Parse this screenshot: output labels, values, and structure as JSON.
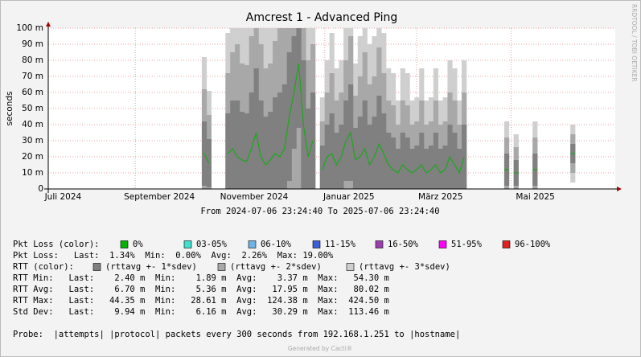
{
  "chart_data": {
    "type": "smokeping",
    "title": "Amcrest 1 - Advanced Ping",
    "y_label": "seconds",
    "subtitle": "From 2024-07-06 23:24:40 To 2025-07-06 23:24:40",
    "watermark": "RRDTOOL / TOBI OETIKER",
    "xlim": [
      "2024-07-06 23:24:40",
      "2025-07-06 23:24:40"
    ],
    "xticks": [
      {
        "value": "2024-07",
        "label": "Juli 2024"
      },
      {
        "value": "2024-09",
        "label": "September 2024"
      },
      {
        "value": "2024-11",
        "label": "November 2024"
      },
      {
        "value": "2025-01",
        "label": "Januar 2025"
      },
      {
        "value": "2025-03",
        "label": "März 2025"
      },
      {
        "value": "2025-05",
        "label": "Mai 2025"
      }
    ],
    "ylim": [
      0,
      0.1
    ],
    "yticks": [
      0,
      {
        "value": 0.01,
        "label": "10 m"
      },
      {
        "value": 0.02,
        "label": "20 m"
      },
      {
        "value": 0.03,
        "label": "30 m"
      },
      {
        "value": 0.04,
        "label": "40 m"
      },
      {
        "value": 0.05,
        "label": "50 m"
      },
      {
        "value": 0.06,
        "label": "60 m"
      },
      {
        "value": 0.07,
        "label": "70 m"
      },
      {
        "value": 0.08,
        "label": "80 m"
      },
      {
        "value": 0.09,
        "label": "90 m"
      },
      {
        "value": 0.1,
        "label": "100 m"
      }
    ],
    "grid": true,
    "median": {
      "color": "#1aa81a",
      "values": [
        null,
        null,
        null,
        null,
        null,
        null,
        null,
        null,
        null,
        null,
        null,
        null,
        null,
        null,
        null,
        null,
        null,
        null,
        null,
        null,
        null,
        null,
        null,
        null,
        null,
        null,
        null,
        null,
        null,
        null,
        null,
        null,
        null,
        0.022,
        0.016,
        null,
        null,
        null,
        0.022,
        0.025,
        0.02,
        0.018,
        0.017,
        0.025,
        0.035,
        0.02,
        0.015,
        0.018,
        0.022,
        0.02,
        0.025,
        0.045,
        0.06,
        0.078,
        0.04,
        0.02,
        0.03,
        null,
        0.012,
        0.02,
        0.022,
        0.015,
        0.02,
        0.03,
        0.035,
        0.018,
        0.02,
        0.025,
        0.015,
        0.02,
        0.028,
        0.022,
        0.015,
        0.012,
        0.01,
        0.015,
        0.012,
        0.01,
        0.012,
        0.015,
        0.01,
        0.012,
        0.015,
        0.01,
        0.012,
        0.02,
        0.015,
        0.01,
        0.02,
        null,
        null,
        null,
        null,
        null,
        null,
        null,
        null,
        0.012,
        null,
        0.01,
        null,
        null,
        null,
        0.012,
        null,
        null,
        null,
        null,
        null,
        null,
        null,
        0.022,
        null,
        null,
        null,
        null,
        null,
        null,
        null,
        null,
        null
      ]
    },
    "series": [
      {
        "name": "(rttavg +- 1*sdev)",
        "k": 1,
        "color": "#808080",
        "values": [
          null,
          null,
          null,
          null,
          null,
          null,
          null,
          null,
          null,
          null,
          null,
          null,
          null,
          null,
          null,
          null,
          null,
          null,
          null,
          null,
          null,
          null,
          null,
          null,
          null,
          null,
          null,
          null,
          null,
          null,
          null,
          null,
          null,
          0.02,
          0.015,
          null,
          null,
          null,
          0.025,
          0.03,
          0.035,
          0.03,
          0.03,
          0.035,
          0.04,
          0.035,
          0.03,
          0.03,
          0.035,
          0.04,
          0.04,
          0.04,
          0.035,
          0.04,
          0.04,
          0.03,
          0.03,
          null,
          0.015,
          0.02,
          0.025,
          0.02,
          0.02,
          0.025,
          0.03,
          0.02,
          0.025,
          0.03,
          0.025,
          0.025,
          0.03,
          0.025,
          0.02,
          0.02,
          0.015,
          0.02,
          0.02,
          0.015,
          0.015,
          0.02,
          0.015,
          0.015,
          0.02,
          0.015,
          0.015,
          0.02,
          0.02,
          0.015,
          0.02,
          null,
          null,
          null,
          null,
          null,
          null,
          null,
          null,
          0.01,
          null,
          0.008,
          null,
          null,
          null,
          0.01,
          null,
          null,
          null,
          null,
          null,
          null,
          null,
          0.006,
          null,
          null,
          null,
          null,
          null,
          null,
          null,
          null,
          null
        ]
      },
      {
        "name": "(rttavg +- 2*sdev)",
        "k": 2,
        "color": "#a8a8a8"
      },
      {
        "name": "(rttavg +- 3*sdev)",
        "k": 3,
        "color": "#cfcfcf"
      }
    ],
    "loss_legend": {
      "label": "Pkt Loss (color):",
      "items": [
        {
          "name": "0%",
          "color": "#00b400"
        },
        {
          "name": "03-05%",
          "color": "#40e0d0"
        },
        {
          "name": "06-10%",
          "color": "#6cb4e4"
        },
        {
          "name": "11-15%",
          "color": "#3a5fd8"
        },
        {
          "name": "16-50%",
          "color": "#9b3fb0"
        },
        {
          "name": "51-95%",
          "color": "#ff00ff"
        },
        {
          "name": "96-100%",
          "color": "#e02020"
        }
      ]
    },
    "rtt_legend_label": "RTT (color):",
    "stats": [
      "Pkt Loss:   Last:  1.34%  Min:  0.00%  Avg:  2.26%  Max: 19.00%",
      "RTT Min:   Last:    2.40 m  Min:    1.89 m  Avg:    3.37 m  Max:   54.30 m",
      "RTT Avg:   Last:    6.70 m  Min:    5.36 m  Avg:   17.95 m  Max:   80.02 m",
      "RTT Max:   Last:   44.35 m  Min:   28.61 m  Avg:  124.38 m  Max:  424.50 m",
      "Std Dev:   Last:    9.94 m  Min:    6.16 m  Avg:   30.29 m  Max:  113.46 m"
    ],
    "probe": "Probe:  |attempts| |protocol| packets every 300 seconds from 192.168.1.251 to |hostname|",
    "footer": "Generated by Cacti®"
  }
}
